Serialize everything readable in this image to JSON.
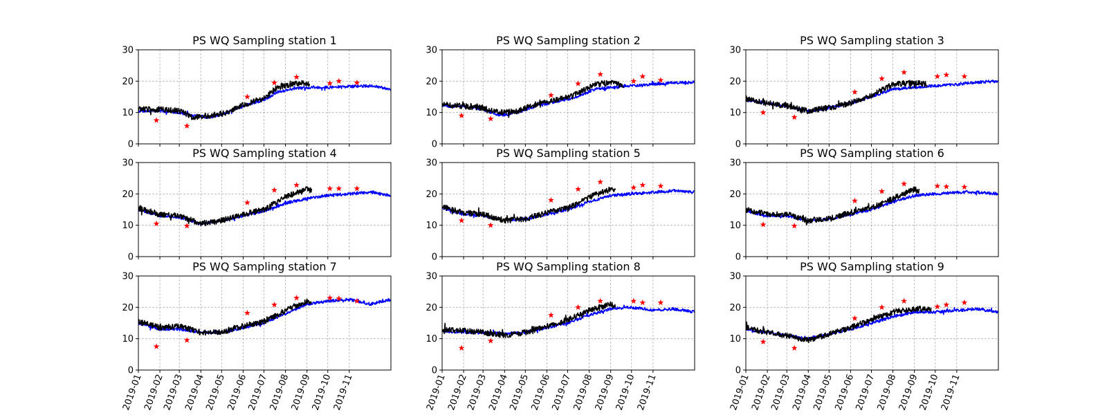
{
  "figure": {
    "x_ticks": [
      "2019-01",
      "2019-02",
      "2019-03",
      "2019-04",
      "2019-05",
      "2019-06",
      "2019-07",
      "2019-08",
      "2019-09",
      "2019-10",
      "2019-11"
    ],
    "y_ticks": [
      "0",
      "10",
      "20",
      "30"
    ],
    "colors": {
      "model": "#0000ff",
      "observed_continuous": "#000000",
      "observed_discrete": "#ff0000",
      "grid": "#b0b0b0"
    }
  },
  "chart_data": [
    {
      "type": "line",
      "title": "PS WQ Sampling station 1",
      "xlabel": "",
      "ylabel": "",
      "xlim": [
        "2019-01-01",
        "2019-12-31"
      ],
      "ylim": [
        0,
        30
      ],
      "grid": true,
      "series": [
        {
          "key": "model",
          "line": "blue",
          "x": [
            "2019-01-01",
            "2019-02-01",
            "2019-03-01",
            "2019-03-20",
            "2019-04-15",
            "2019-05-10",
            "2019-06-01",
            "2019-07-01",
            "2019-07-20",
            "2019-08-10",
            "2019-09-01",
            "2019-10-01",
            "2019-11-01",
            "2019-12-01",
            "2019-12-31"
          ],
          "y": [
            10.5,
            10.5,
            10,
            9,
            8.5,
            10,
            12,
            14,
            16.5,
            17.5,
            18,
            18,
            18.3,
            18.5,
            17.5
          ]
        },
        {
          "key": "obs_cont",
          "line": "black",
          "x": [
            "2019-01-01",
            "2019-02-01",
            "2019-03-01",
            "2019-03-20",
            "2019-04-15",
            "2019-05-10",
            "2019-06-01",
            "2019-07-01",
            "2019-07-20",
            "2019-08-10",
            "2019-09-01",
            "2019-09-05"
          ],
          "y": [
            11,
            11,
            10.5,
            8.5,
            9,
            10,
            12.5,
            14.5,
            18,
            19,
            19.5,
            19
          ]
        },
        {
          "key": "obs_pts",
          "marker": "star",
          "x": [
            "2019-01-27",
            "2019-03-12",
            "2019-06-07",
            "2019-07-16",
            "2019-08-17",
            "2019-10-04",
            "2019-10-17",
            "2019-11-12"
          ],
          "y": [
            7.5,
            5.7,
            15,
            19.5,
            21.3,
            19.3,
            20,
            19.5
          ]
        }
      ]
    },
    {
      "type": "line",
      "title": "PS WQ Sampling station 2",
      "xlabel": "",
      "ylabel": "",
      "xlim": [
        "2019-01-01",
        "2019-12-31"
      ],
      "ylim": [
        0,
        30
      ],
      "grid": true,
      "series": [
        {
          "key": "model",
          "line": "blue",
          "x": [
            "2019-01-01",
            "2019-02-01",
            "2019-03-01",
            "2019-03-25",
            "2019-04-20",
            "2019-05-15",
            "2019-06-15",
            "2019-07-15",
            "2019-08-10",
            "2019-09-01",
            "2019-10-01",
            "2019-11-01",
            "2019-12-01",
            "2019-12-31"
          ],
          "y": [
            12,
            12,
            11,
            9,
            10,
            12,
            13.5,
            15,
            17.5,
            18,
            18.5,
            19,
            19.5,
            19.7
          ]
        },
        {
          "key": "obs_cont",
          "line": "black",
          "x": [
            "2019-01-01",
            "2019-02-01",
            "2019-03-01",
            "2019-03-25",
            "2019-04-20",
            "2019-05-15",
            "2019-06-15",
            "2019-07-15",
            "2019-08-10",
            "2019-09-01",
            "2019-09-20"
          ],
          "y": [
            12.5,
            12,
            11.5,
            10,
            10.5,
            12.5,
            14,
            16,
            19,
            19.5,
            18.5
          ]
        },
        {
          "key": "obs_pts",
          "marker": "star",
          "x": [
            "2019-01-29",
            "2019-03-12",
            "2019-06-07",
            "2019-07-16",
            "2019-08-17",
            "2019-10-04",
            "2019-10-17",
            "2019-11-12"
          ],
          "y": [
            9,
            8,
            15.5,
            19.2,
            22.2,
            20,
            21.5,
            20.3
          ]
        }
      ]
    },
    {
      "type": "line",
      "title": "PS WQ Sampling station 3",
      "xlabel": "",
      "ylabel": "",
      "xlim": [
        "2019-01-01",
        "2019-12-31"
      ],
      "ylim": [
        0,
        30
      ],
      "grid": true,
      "series": [
        {
          "key": "model",
          "line": "blue",
          "x": [
            "2019-01-01",
            "2019-02-01",
            "2019-03-01",
            "2019-04-01",
            "2019-05-01",
            "2019-06-01",
            "2019-07-01",
            "2019-08-01",
            "2019-09-01",
            "2019-10-01",
            "2019-11-01",
            "2019-12-01",
            "2019-12-31"
          ],
          "y": [
            14,
            13,
            12,
            10.5,
            11.5,
            13,
            15,
            17.5,
            18,
            18.5,
            19,
            19.7,
            20
          ]
        },
        {
          "key": "obs_cont",
          "line": "black",
          "x": [
            "2019-01-01",
            "2019-02-01",
            "2019-03-01",
            "2019-04-01",
            "2019-05-01",
            "2019-06-01",
            "2019-07-01",
            "2019-08-01",
            "2019-09-01",
            "2019-09-20"
          ],
          "y": [
            14.5,
            13,
            12,
            10.5,
            11.5,
            13,
            15.5,
            19,
            19.5,
            19
          ]
        },
        {
          "key": "obs_pts",
          "marker": "star",
          "x": [
            "2019-01-26",
            "2019-03-12",
            "2019-06-07",
            "2019-07-16",
            "2019-08-17",
            "2019-10-04",
            "2019-10-17",
            "2019-11-12"
          ],
          "y": [
            10,
            8.5,
            16.5,
            20.8,
            22.8,
            21.5,
            22,
            21.5
          ]
        }
      ]
    },
    {
      "type": "line",
      "title": "PS WQ Sampling station 4",
      "xlabel": "",
      "ylabel": "",
      "xlim": [
        "2019-01-01",
        "2019-12-31"
      ],
      "ylim": [
        0,
        30
      ],
      "grid": true,
      "series": [
        {
          "key": "model",
          "line": "blue",
          "x": [
            "2019-01-01",
            "2019-02-01",
            "2019-03-01",
            "2019-04-01",
            "2019-05-01",
            "2019-06-01",
            "2019-07-01",
            "2019-08-01",
            "2019-09-01",
            "2019-10-01",
            "2019-11-01",
            "2019-12-01",
            "2019-12-31"
          ],
          "y": [
            15,
            13,
            12.5,
            10.5,
            11.5,
            13,
            14.5,
            17,
            18.5,
            19.5,
            20,
            20.5,
            19.5
          ]
        },
        {
          "key": "obs_cont",
          "line": "black",
          "x": [
            "2019-01-01",
            "2019-02-01",
            "2019-03-01",
            "2019-04-01",
            "2019-05-01",
            "2019-06-01",
            "2019-07-01",
            "2019-08-01",
            "2019-09-01",
            "2019-09-08"
          ],
          "y": [
            15.5,
            13.5,
            13,
            10.5,
            11.5,
            13.5,
            15,
            19,
            21.5,
            21
          ]
        },
        {
          "key": "obs_pts",
          "marker": "star",
          "x": [
            "2019-01-27",
            "2019-03-12",
            "2019-06-07",
            "2019-07-16",
            "2019-08-17",
            "2019-10-04",
            "2019-10-17",
            "2019-11-12"
          ],
          "y": [
            10.5,
            9.8,
            17.2,
            21.2,
            22.8,
            21.7,
            21.7,
            21.7
          ]
        }
      ]
    },
    {
      "type": "line",
      "title": "PS WQ Sampling station 5",
      "xlabel": "",
      "ylabel": "",
      "xlim": [
        "2019-01-01",
        "2019-12-31"
      ],
      "ylim": [
        0,
        30
      ],
      "grid": true,
      "series": [
        {
          "key": "model",
          "line": "blue",
          "x": [
            "2019-01-01",
            "2019-02-01",
            "2019-03-01",
            "2019-04-01",
            "2019-05-01",
            "2019-06-01",
            "2019-07-01",
            "2019-08-01",
            "2019-09-01",
            "2019-10-01",
            "2019-11-01",
            "2019-12-01",
            "2019-12-31"
          ],
          "y": [
            15.5,
            13.5,
            13,
            11.5,
            12,
            13.5,
            15,
            17.5,
            19.5,
            20,
            20.5,
            21,
            20.5
          ]
        },
        {
          "key": "obs_cont",
          "line": "black",
          "x": [
            "2019-01-01",
            "2019-02-01",
            "2019-03-01",
            "2019-04-01",
            "2019-05-01",
            "2019-06-01",
            "2019-07-01",
            "2019-08-01",
            "2019-09-01",
            "2019-09-08"
          ],
          "y": [
            16,
            14,
            13.5,
            11.5,
            12,
            14,
            15.5,
            19,
            21.5,
            21
          ]
        },
        {
          "key": "obs_pts",
          "marker": "star",
          "x": [
            "2019-01-29",
            "2019-03-12",
            "2019-06-07",
            "2019-07-16",
            "2019-08-17",
            "2019-10-04",
            "2019-10-17",
            "2019-11-12"
          ],
          "y": [
            11.5,
            10,
            18,
            21.5,
            23.8,
            22,
            22.8,
            22.5
          ]
        }
      ]
    },
    {
      "type": "line",
      "title": "PS WQ Sampling station 6",
      "xlabel": "",
      "ylabel": "",
      "xlim": [
        "2019-01-01",
        "2019-12-31"
      ],
      "ylim": [
        0,
        30
      ],
      "grid": true,
      "series": [
        {
          "key": "model",
          "line": "blue",
          "x": [
            "2019-01-01",
            "2019-02-01",
            "2019-03-01",
            "2019-04-01",
            "2019-05-01",
            "2019-06-01",
            "2019-07-01",
            "2019-08-01",
            "2019-09-01",
            "2019-10-01",
            "2019-11-01",
            "2019-12-01",
            "2019-12-31"
          ],
          "y": [
            14.5,
            13,
            13,
            11.5,
            12,
            13.5,
            15,
            17.5,
            19.5,
            20,
            20.5,
            20.5,
            20
          ]
        },
        {
          "key": "obs_cont",
          "line": "black",
          "x": [
            "2019-01-01",
            "2019-02-01",
            "2019-03-01",
            "2019-04-01",
            "2019-05-01",
            "2019-06-01",
            "2019-07-01",
            "2019-08-01",
            "2019-09-01",
            "2019-09-08"
          ],
          "y": [
            15,
            13.5,
            13.5,
            11.5,
            12,
            14,
            15.5,
            18.5,
            21.5,
            21
          ]
        },
        {
          "key": "obs_pts",
          "marker": "star",
          "x": [
            "2019-01-26",
            "2019-03-12",
            "2019-06-07",
            "2019-07-16",
            "2019-08-17",
            "2019-10-04",
            "2019-10-17",
            "2019-11-12"
          ],
          "y": [
            10.2,
            9.8,
            17.8,
            20.8,
            23.2,
            22.5,
            22.3,
            22.2
          ]
        }
      ]
    },
    {
      "type": "line",
      "title": "PS WQ Sampling station 7",
      "xlabel": "",
      "ylabel": "",
      "xlim": [
        "2019-01-01",
        "2019-12-31"
      ],
      "ylim": [
        0,
        30
      ],
      "grid": true,
      "series": [
        {
          "key": "model",
          "line": "blue",
          "x": [
            "2019-01-01",
            "2019-02-01",
            "2019-03-01",
            "2019-04-01",
            "2019-05-01",
            "2019-06-01",
            "2019-07-01",
            "2019-08-01",
            "2019-09-01",
            "2019-10-01",
            "2019-11-01",
            "2019-12-01",
            "2019-12-31"
          ],
          "y": [
            15,
            13,
            13,
            12,
            12,
            13.5,
            15,
            18,
            21,
            22,
            22.5,
            21,
            22.5
          ]
        },
        {
          "key": "obs_cont",
          "line": "black",
          "x": [
            "2019-01-01",
            "2019-02-01",
            "2019-03-01",
            "2019-04-01",
            "2019-05-01",
            "2019-06-01",
            "2019-07-01",
            "2019-08-01",
            "2019-09-01",
            "2019-09-08"
          ],
          "y": [
            15.5,
            13.5,
            14,
            12,
            12,
            14,
            15.5,
            19,
            22,
            21.5
          ]
        },
        {
          "key": "obs_pts",
          "marker": "star",
          "x": [
            "2019-01-27",
            "2019-03-12",
            "2019-06-07",
            "2019-07-16",
            "2019-08-17",
            "2019-10-04",
            "2019-10-17",
            "2019-11-12"
          ],
          "y": [
            7.5,
            9.5,
            18.2,
            20.8,
            23,
            23,
            22.8,
            22
          ]
        }
      ]
    },
    {
      "type": "line",
      "title": "PS WQ Sampling station 8",
      "xlabel": "",
      "ylabel": "",
      "xlim": [
        "2019-01-01",
        "2019-12-31"
      ],
      "ylim": [
        0,
        30
      ],
      "grid": true,
      "series": [
        {
          "key": "model",
          "line": "blue",
          "x": [
            "2019-01-01",
            "2019-02-01",
            "2019-03-01",
            "2019-04-01",
            "2019-05-01",
            "2019-06-01",
            "2019-07-01",
            "2019-08-01",
            "2019-09-01",
            "2019-10-01",
            "2019-11-01",
            "2019-12-01",
            "2019-12-31"
          ],
          "y": [
            12.5,
            12,
            12,
            11.5,
            12,
            13.5,
            15,
            17.5,
            19.5,
            20,
            19,
            19.5,
            18.5
          ]
        },
        {
          "key": "obs_cont",
          "line": "black",
          "x": [
            "2019-01-01",
            "2019-02-01",
            "2019-03-01",
            "2019-04-01",
            "2019-05-01",
            "2019-06-01",
            "2019-07-01",
            "2019-08-01",
            "2019-09-01",
            "2019-09-08"
          ],
          "y": [
            13,
            12.5,
            12,
            11,
            12,
            14,
            16,
            19,
            21,
            20
          ]
        },
        {
          "key": "obs_pts",
          "marker": "star",
          "x": [
            "2019-01-29",
            "2019-03-12",
            "2019-06-07",
            "2019-07-16",
            "2019-08-17",
            "2019-10-04",
            "2019-10-17",
            "2019-11-12"
          ],
          "y": [
            7,
            9.3,
            17.5,
            20,
            22,
            22,
            21.5,
            21.5
          ]
        }
      ]
    },
    {
      "type": "line",
      "title": "PS WQ Sampling station 9",
      "xlabel": "",
      "ylabel": "",
      "xlim": [
        "2019-01-01",
        "2019-12-31"
      ],
      "ylim": [
        0,
        30
      ],
      "grid": true,
      "series": [
        {
          "key": "model",
          "line": "blue",
          "x": [
            "2019-01-01",
            "2019-02-01",
            "2019-03-01",
            "2019-04-01",
            "2019-05-01",
            "2019-06-01",
            "2019-07-01",
            "2019-08-01",
            "2019-09-01",
            "2019-10-01",
            "2019-11-01",
            "2019-12-01",
            "2019-12-31"
          ],
          "y": [
            13,
            12,
            11,
            10,
            11.5,
            13,
            15,
            17,
            18.5,
            18.5,
            19,
            19.5,
            18.5
          ]
        },
        {
          "key": "obs_cont",
          "line": "black",
          "x": [
            "2019-01-01",
            "2019-02-01",
            "2019-03-01",
            "2019-04-01",
            "2019-05-01",
            "2019-06-01",
            "2019-07-01",
            "2019-08-01",
            "2019-09-01",
            "2019-09-25"
          ],
          "y": [
            13.5,
            12,
            11,
            9.5,
            11.5,
            13.5,
            16,
            18.5,
            19.5,
            19.5
          ]
        },
        {
          "key": "obs_pts",
          "marker": "star",
          "x": [
            "2019-01-26",
            "2019-03-12",
            "2019-06-07",
            "2019-07-16",
            "2019-08-17",
            "2019-10-04",
            "2019-10-17",
            "2019-11-12"
          ],
          "y": [
            9,
            7,
            16.5,
            20,
            22,
            20.2,
            20.8,
            21.5
          ]
        }
      ]
    }
  ]
}
